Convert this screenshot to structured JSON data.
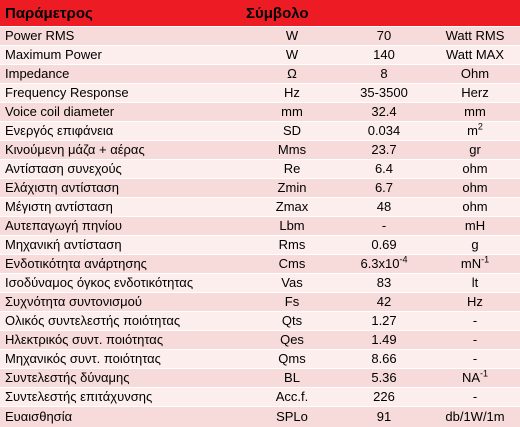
{
  "header": {
    "parameter": "Παράμετρος",
    "symbol": "Σύμβολο"
  },
  "colors": {
    "header_bg": "#ed1c24",
    "row_odd": "#f7dada",
    "row_even": "#fdeeee"
  },
  "rows": [
    {
      "param": "Power RMS",
      "symbol": "W",
      "value": "70",
      "unit": "Watt RMS"
    },
    {
      "param": "Maximum Power",
      "symbol": "W",
      "value": "140",
      "unit": "Watt MAX"
    },
    {
      "param": "Impedance",
      "symbol": "Ω",
      "value": "8",
      "unit": "Ohm"
    },
    {
      "param": "Frequency Response",
      "symbol": "Hz",
      "value": "35-3500",
      "unit": "Herz"
    },
    {
      "param": "Voice coil diameter",
      "symbol": "mm",
      "value": "32.4",
      "unit": "mm"
    },
    {
      "param": "Ενεργός επιφάνεια",
      "symbol": "SD",
      "value": "0.034",
      "unit": "m",
      "unit_sup": "2"
    },
    {
      "param": "Κινούμενη μάζα + αέρας",
      "symbol": "Mms",
      "value": "23.7",
      "unit": "gr"
    },
    {
      "param": "Αντίσταση συνεχούς",
      "symbol": "Re",
      "value": "6.4",
      "unit": "ohm"
    },
    {
      "param": "Ελάχιστη αντίσταση",
      "symbol": "Zmin",
      "value": "6.7",
      "unit": "ohm"
    },
    {
      "param": "Μέγιστη αντίσταση",
      "symbol": "Zmax",
      "value": "48",
      "unit": "ohm"
    },
    {
      "param": "Αυτεπαγωγή πηνίου",
      "symbol": "Lbm",
      "value": "-",
      "unit": "mH"
    },
    {
      "param": "Μηχανική αντίσταση",
      "symbol": "Rms",
      "value": "0.69",
      "unit": "g"
    },
    {
      "param": "Ενδοτικότητα ανάρτησης",
      "symbol": "Cms",
      "value": "6.3x10",
      "value_sup": "-4",
      "unit": "mN",
      "unit_sup": "-1"
    },
    {
      "param": "Ισοδύναμος όγκος ενδοτικότητας",
      "symbol": "Vas",
      "value": "83",
      "unit": "lt"
    },
    {
      "param": "Συχνότητα συντονισμού",
      "symbol": "Fs",
      "value": "42",
      "unit": "Hz"
    },
    {
      "param": "Ολικός συντελεστής ποιότητας",
      "symbol": "Qts",
      "value": "1.27",
      "unit": "-"
    },
    {
      "param": "Ηλεκτρικός συντ. ποιότητας",
      "symbol": "Qes",
      "value": "1.49",
      "unit": "-"
    },
    {
      "param": "Μηχανικός συντ. ποιότητας",
      "symbol": "Qms",
      "value": "8.66",
      "unit": "-"
    },
    {
      "param": "Συντελεστής δύναμης",
      "symbol": "BL",
      "value": "5.36",
      "unit": "NA",
      "unit_sup": "-1"
    },
    {
      "param": "Συντελεστής επιτάχυνσης",
      "symbol": "Acc.f.",
      "value": "226",
      "unit": "-"
    },
    {
      "param": "Ευαισθησία",
      "symbol": "SPLo",
      "value": "91",
      "unit": "db/1W/1m"
    }
  ]
}
